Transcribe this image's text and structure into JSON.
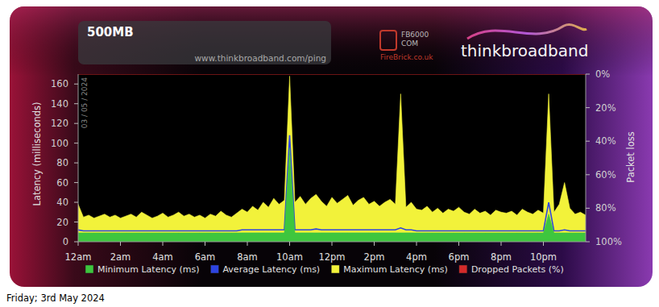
{
  "chart_data": {
    "type": "area",
    "title": "500MB",
    "subtitle": "www.thinkbroadband.com/ping",
    "y_label": "Latency (milliseconds)",
    "y2_label": "Packet loss",
    "annotations": [
      "03 / 05 / 2024",
      "FB6000",
      "COM",
      "FireBrick.co.uk",
      "thinkbroadband",
      "Friday; 3rd May 2024"
    ],
    "grid": false,
    "legend": "bottom",
    "xlim": [
      0,
      24
    ],
    "xticks": [
      {
        "value": 0,
        "label": "12am"
      },
      {
        "value": 2,
        "label": "2am"
      },
      {
        "value": 4,
        "label": "4am"
      },
      {
        "value": 6,
        "label": "6am"
      },
      {
        "value": 8,
        "label": "8am"
      },
      {
        "value": 10,
        "label": "10am"
      },
      {
        "value": 12,
        "label": "12pm"
      },
      {
        "value": 14,
        "label": "2pm"
      },
      {
        "value": 16,
        "label": "4pm"
      },
      {
        "value": 18,
        "label": "6pm"
      },
      {
        "value": 20,
        "label": "8pm"
      },
      {
        "value": 22,
        "label": "10pm"
      }
    ],
    "ylim": [
      0,
      170
    ],
    "yticks": [
      0,
      20,
      40,
      60,
      80,
      100,
      120,
      140,
      160
    ],
    "y2lim": [
      100,
      0
    ],
    "y2ticks": [
      {
        "value": 0,
        "label": "0%"
      },
      {
        "value": 20,
        "label": "20%"
      },
      {
        "value": 40,
        "label": "40%"
      },
      {
        "value": 60,
        "label": "60%"
      },
      {
        "value": 80,
        "label": "80%"
      },
      {
        "value": 100,
        "label": "100%"
      }
    ],
    "x": [
      0,
      0.25,
      0.5,
      0.75,
      1,
      1.25,
      1.5,
      1.75,
      2,
      2.25,
      2.5,
      2.75,
      3,
      3.25,
      3.5,
      3.75,
      4,
      4.25,
      4.5,
      4.75,
      5,
      5.25,
      5.5,
      5.75,
      6,
      6.25,
      6.5,
      6.75,
      7,
      7.25,
      7.5,
      7.75,
      8,
      8.25,
      8.5,
      8.75,
      9,
      9.25,
      9.5,
      9.75,
      10,
      10.25,
      10.5,
      10.75,
      11,
      11.25,
      11.5,
      11.75,
      12,
      12.25,
      12.5,
      12.75,
      13,
      13.25,
      13.5,
      13.75,
      14,
      14.25,
      14.5,
      14.75,
      15,
      15.25,
      15.5,
      15.75,
      16,
      16.25,
      16.5,
      16.75,
      17,
      17.25,
      17.5,
      17.75,
      18,
      18.25,
      18.5,
      18.75,
      19,
      19.25,
      19.5,
      19.75,
      20,
      20.25,
      20.5,
      20.75,
      21,
      21.25,
      21.5,
      21.75,
      22,
      22.25,
      22.5,
      22.75,
      23,
      23.25,
      23.5,
      23.75,
      24
    ],
    "series": [
      {
        "name": "Minimum Latency (ms)",
        "color": "#3ec63e",
        "type": "area",
        "values": [
          9,
          9,
          9,
          9,
          9,
          9,
          9,
          9,
          9,
          9,
          9,
          9,
          9,
          9,
          9,
          9,
          9,
          9,
          9,
          9,
          9,
          9,
          9,
          9,
          9,
          9,
          9,
          9,
          9,
          9,
          9,
          9,
          9,
          9,
          9,
          9,
          9,
          9,
          9,
          9,
          95,
          9,
          9,
          9,
          9,
          9,
          9,
          9,
          9,
          9,
          9,
          9,
          9,
          9,
          9,
          9,
          9,
          9,
          9,
          9,
          9,
          9,
          9,
          9,
          9,
          9,
          9,
          9,
          9,
          9,
          9,
          9,
          9,
          9,
          9,
          9,
          9,
          9,
          9,
          9,
          9,
          9,
          9,
          9,
          9,
          9,
          9,
          9,
          9,
          28,
          9,
          9,
          9,
          9,
          9,
          9,
          9
        ]
      },
      {
        "name": "Average Latency (ms)",
        "color": "#2d44e0",
        "type": "line",
        "values": [
          12,
          11,
          11,
          11,
          11,
          11,
          11,
          11,
          11,
          11,
          11,
          11,
          11,
          11,
          11,
          11,
          11,
          11,
          11,
          11,
          11,
          11,
          11,
          11,
          11,
          11,
          11,
          11,
          11,
          11,
          11,
          12,
          12,
          12,
          12,
          12,
          12,
          12,
          12,
          12,
          108,
          12,
          12,
          12,
          12,
          13,
          12,
          12,
          12,
          12,
          12,
          12,
          12,
          12,
          12,
          12,
          12,
          12,
          12,
          12,
          12,
          14,
          12,
          12,
          11,
          11,
          11,
          11,
          11,
          11,
          11,
          11,
          11,
          11,
          11,
          11,
          11,
          11,
          11,
          11,
          11,
          11,
          11,
          11,
          11,
          11,
          11,
          11,
          11,
          40,
          11,
          11,
          12,
          11,
          11,
          11,
          11
        ]
      },
      {
        "name": "Maximum Latency (ms)",
        "color": "#f2f23a",
        "type": "area",
        "values": [
          38,
          25,
          27,
          24,
          26,
          28,
          25,
          27,
          24,
          26,
          28,
          25,
          30,
          27,
          24,
          26,
          29,
          25,
          27,
          30,
          26,
          28,
          25,
          27,
          24,
          28,
          26,
          31,
          27,
          25,
          29,
          33,
          30,
          36,
          32,
          40,
          35,
          44,
          38,
          42,
          168,
          40,
          46,
          38,
          44,
          48,
          41,
          36,
          45,
          39,
          43,
          47,
          37,
          42,
          45,
          38,
          41,
          36,
          40,
          43,
          38,
          150,
          35,
          40,
          33,
          32,
          36,
          30,
          34,
          29,
          33,
          31,
          35,
          30,
          28,
          33,
          29,
          31,
          27,
          32,
          30,
          29,
          31,
          27,
          33,
          30,
          28,
          32,
          29,
          150,
          30,
          38,
          60,
          34,
          28,
          30,
          27
        ]
      },
      {
        "name": "Dropped Packets (%)",
        "color": "#d42a2a",
        "type": "area",
        "axis": "y2",
        "values": [
          0,
          0,
          0,
          0,
          0,
          0,
          0,
          0,
          0,
          0,
          0,
          0,
          0,
          0,
          0,
          0,
          0,
          0,
          0,
          0,
          0,
          0,
          0,
          0,
          0,
          0,
          0,
          0,
          0,
          0,
          0,
          0,
          0,
          0,
          0,
          0,
          0,
          0,
          0,
          0,
          0,
          0,
          0,
          0,
          0,
          0,
          0,
          0,
          0,
          0,
          0,
          0,
          0,
          0,
          0,
          0,
          0,
          0,
          0,
          0,
          0,
          0,
          0,
          0,
          0,
          0,
          0,
          0,
          0,
          0,
          0,
          0,
          0,
          0,
          0,
          0,
          0,
          0,
          0,
          0,
          0,
          0,
          0,
          0,
          0,
          0,
          0,
          0,
          0,
          0,
          0,
          0,
          0,
          0,
          0,
          0,
          0
        ]
      }
    ]
  }
}
